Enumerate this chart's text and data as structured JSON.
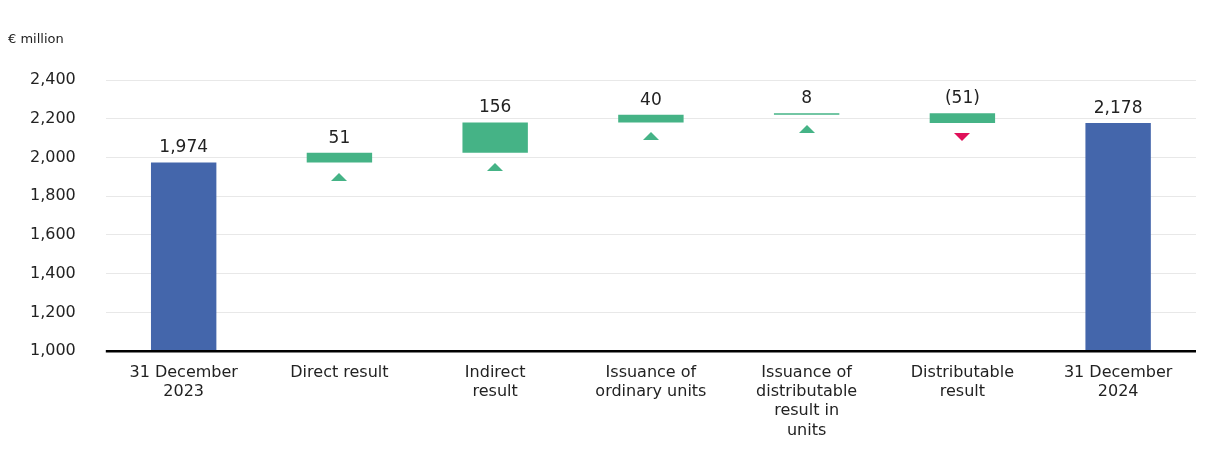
{
  "chart_data": {
    "type": "bar",
    "ylabel": "€ million",
    "categories": [
      "31 December 2023",
      "Direct result",
      "Indirect result",
      "Issuance of ordinary units",
      "Issuance of distributable result in units",
      "Distributable result",
      "31 December 2024"
    ],
    "base": [
      1000,
      1974,
      2025,
      2181,
      2221,
      2229,
      1000
    ],
    "values": [
      974,
      51,
      156,
      40,
      8,
      -51,
      1178
    ],
    "value_labels": [
      "1,974",
      "51",
      "156",
      "40",
      "8",
      "(51)",
      "2,178"
    ],
    "colors": [
      "#4466ab",
      "#45b386",
      "#45b386",
      "#45b386",
      "#45b386",
      "#45b386",
      "#4466ab"
    ],
    "ylim": [
      1000,
      2400
    ],
    "yticks": [
      {
        "value": 1000,
        "label": "1,000"
      },
      {
        "value": 1200,
        "label": "1,200"
      },
      {
        "value": 1400,
        "label": "1,400"
      },
      {
        "value": 1600,
        "label": "1,600"
      },
      {
        "value": 1800,
        "label": "1,800"
      },
      {
        "value": 2000,
        "label": "2,000"
      },
      {
        "value": 2200,
        "label": "2,200"
      },
      {
        "value": 2400,
        "label": "2,400"
      }
    ],
    "grid": "y",
    "legend": false
  }
}
